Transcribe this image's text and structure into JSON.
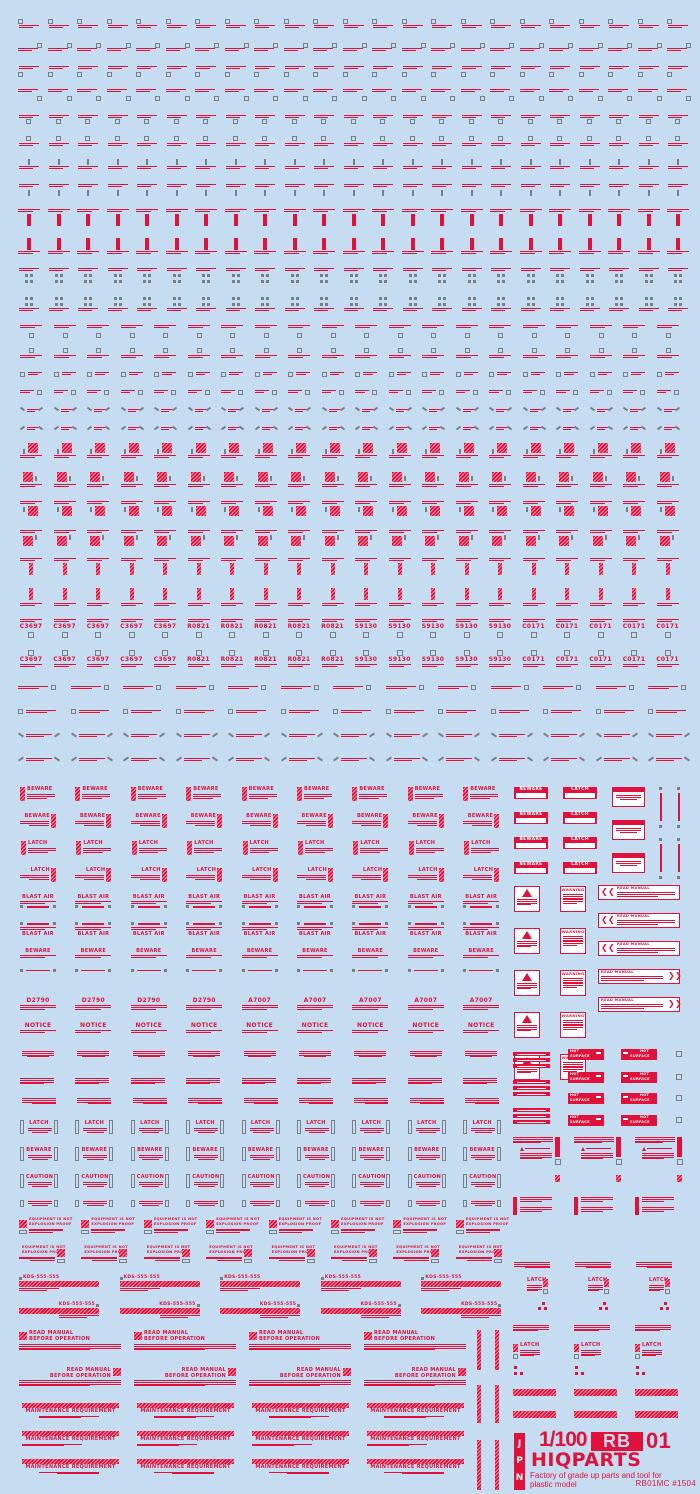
{
  "sheet": {
    "background": "#c6dcf1",
    "decal_red": "#e0123c",
    "marker_gray": "#7b7f84"
  },
  "labels": {
    "beware": "BEWARE",
    "latch": "LATCH",
    "blast_air": "BLAST AIR",
    "notice": "NOTICE",
    "caution": "CAUTION",
    "warning": "WARNING",
    "read_manual": "READ MANUAL",
    "before_operation": "BEFORE OPERATION",
    "maintenance": "MAINTENANCE REQUIREMENT",
    "equipment_1": "EQUIPMENT IS NOT",
    "equipment_2": "EXPLOSION PROOF",
    "serial": "KDS-555-555",
    "hot": "HOT",
    "surface": "SURFACE"
  },
  "codes": {
    "row_a": [
      "C3697",
      "R0821",
      "S9130",
      "C0171"
    ],
    "row_b": [
      "D2790",
      "A7007"
    ]
  },
  "logo": {
    "origin": "JPN",
    "scale": "1/100",
    "series_box": "RB",
    "series_number": "01",
    "brand": "HIQPARTS",
    "tagline": "Factory of grade up parts and tool for plastic model",
    "product_code": "RB01MC #1504"
  }
}
